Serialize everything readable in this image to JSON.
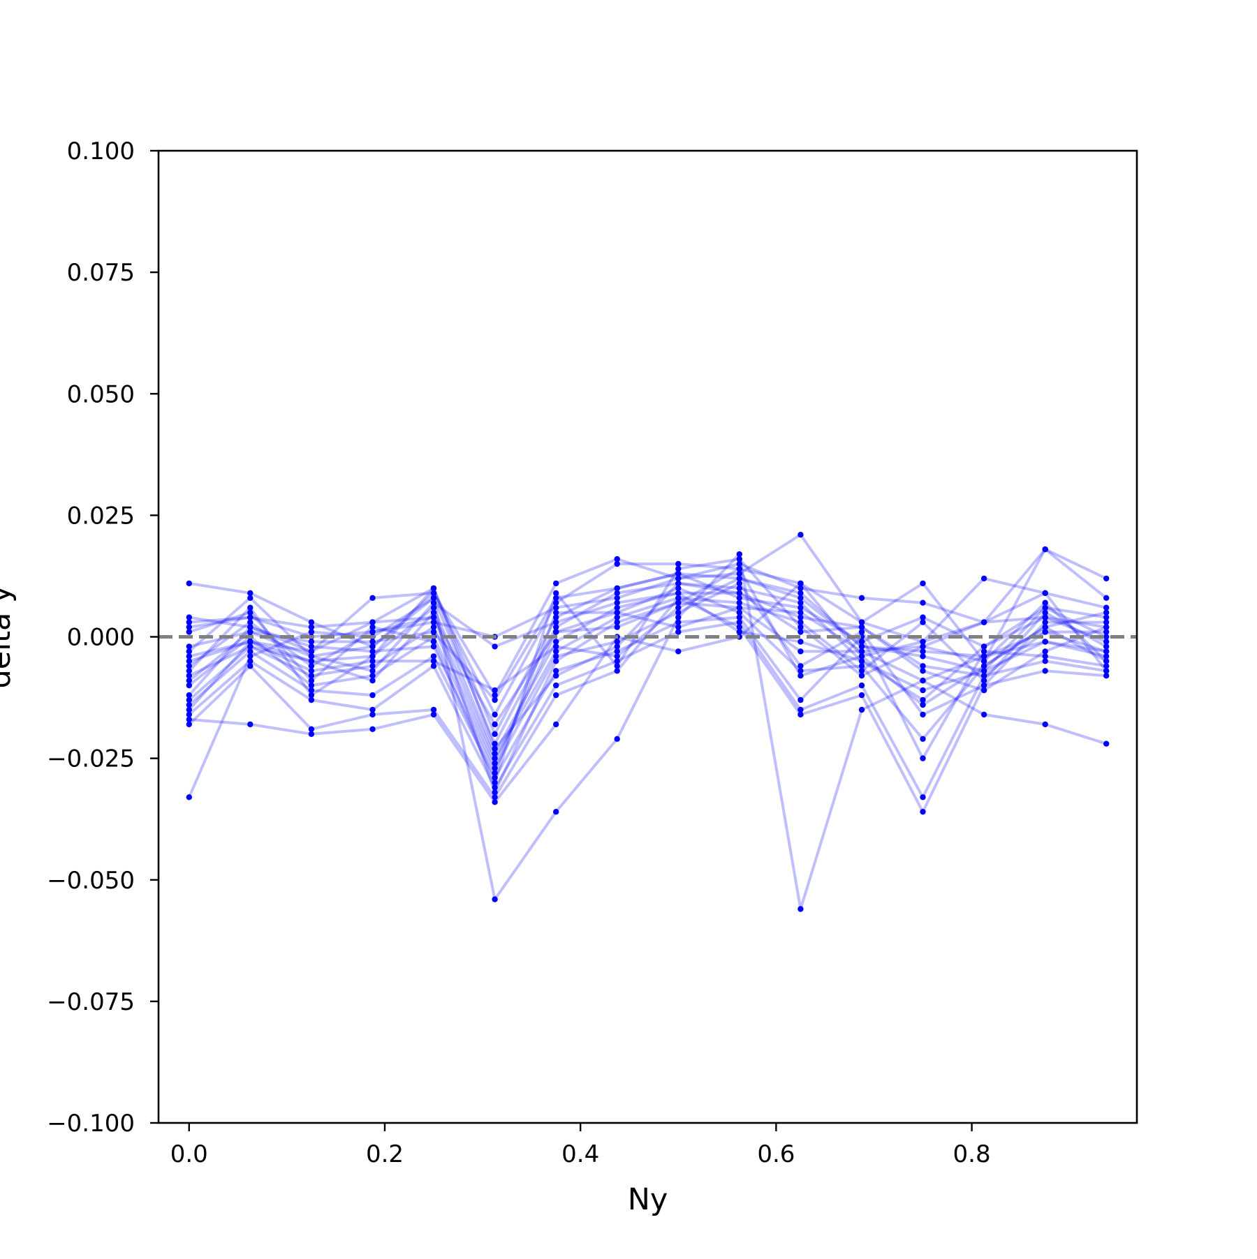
{
  "chart_data": {
    "type": "line",
    "title": "",
    "xlabel": "Ny",
    "ylabel": "delta y",
    "xlim": [
      -0.03125,
      0.96875
    ],
    "ylim": [
      -0.1,
      0.1
    ],
    "xticks": [
      "0.0",
      "0.2",
      "0.4",
      "0.6",
      "0.8"
    ],
    "xtick_values": [
      0.0,
      0.2,
      0.4,
      0.6,
      0.8
    ],
    "yticks": [
      "0.100",
      "0.075",
      "0.050",
      "0.025",
      "0.000",
      "−0.025",
      "−0.050",
      "−0.075",
      "−0.100"
    ],
    "ytick_values": [
      0.1,
      0.075,
      0.05,
      0.025,
      0.0,
      -0.025,
      -0.05,
      -0.075,
      -0.1
    ],
    "grid": false,
    "legend": "none",
    "reference_line": {
      "y": 0.0,
      "style": "dashed",
      "color": "#808080"
    },
    "series_color": "#0000ff",
    "series_opacity": 0.25,
    "x": [
      0.0,
      0.0625,
      0.125,
      0.1875,
      0.25,
      0.3125,
      0.375,
      0.4375,
      0.5,
      0.5625,
      0.625,
      0.6875,
      0.75,
      0.8125,
      0.875,
      0.9375
    ],
    "series": [
      {
        "values": [
          0.011,
          0.009,
          0.003,
          -0.002,
          0.009,
          -0.012,
          0.011,
          0.016,
          0.012,
          0.013,
          0.021,
          0.003,
          0.011,
          -0.005,
          0.018,
          0.012
        ]
      },
      {
        "values": [
          0.004,
          0.002,
          -0.003,
          0.008,
          0.009,
          -0.016,
          0.007,
          0.015,
          0.015,
          0.014,
          0.011,
          -0.004,
          -0.001,
          0.003,
          0.009,
          0.006
        ]
      },
      {
        "values": [
          0.003,
          0.004,
          0.002,
          0.003,
          0.01,
          -0.02,
          0.004,
          0.01,
          0.013,
          0.012,
          0.009,
          -0.002,
          -0.004,
          -0.007,
          0.006,
          0.004
        ]
      },
      {
        "values": [
          -0.002,
          0.001,
          -0.004,
          -0.002,
          0.008,
          -0.022,
          0.002,
          0.009,
          0.011,
          0.01,
          0.007,
          -0.005,
          -0.013,
          -0.002,
          0.004,
          0.002
        ]
      },
      {
        "values": [
          -0.004,
          -0.001,
          -0.005,
          -0.004,
          0.006,
          -0.024,
          -0.001,
          0.006,
          0.009,
          0.009,
          0.004,
          0.002,
          -0.006,
          -0.008,
          0.001,
          0.001
        ]
      },
      {
        "values": [
          -0.006,
          0.003,
          -0.006,
          0.001,
          0.004,
          -0.025,
          -0.003,
          0.004,
          0.008,
          0.007,
          0.003,
          -0.007,
          0.003,
          -0.009,
          0.005,
          -0.002
        ]
      },
      {
        "values": [
          -0.008,
          -0.002,
          -0.008,
          -0.006,
          0.002,
          -0.026,
          0.001,
          0.002,
          0.007,
          0.006,
          0.005,
          -0.003,
          -0.009,
          -0.004,
          -0.001,
          -0.004
        ]
      },
      {
        "values": [
          -0.01,
          0.0,
          -0.01,
          -0.008,
          0.0,
          -0.027,
          -0.004,
          -0.001,
          0.005,
          0.011,
          -0.006,
          0.001,
          -0.016,
          -0.01,
          0.003,
          0.003
        ]
      },
      {
        "values": [
          -0.012,
          0.002,
          -0.002,
          -0.003,
          -0.002,
          -0.028,
          0.005,
          0.005,
          0.01,
          0.005,
          -0.007,
          -0.006,
          -0.021,
          -0.006,
          0.002,
          -0.005
        ]
      },
      {
        "values": [
          -0.014,
          -0.003,
          -0.011,
          -0.012,
          -0.004,
          -0.029,
          -0.007,
          -0.003,
          0.003,
          0.004,
          -0.013,
          0.0,
          -0.025,
          -0.003,
          -0.004,
          -0.006
        ]
      },
      {
        "values": [
          -0.016,
          -0.005,
          -0.013,
          -0.015,
          -0.006,
          -0.031,
          -0.01,
          -0.005,
          0.001,
          0.003,
          -0.015,
          -0.01,
          -0.033,
          -0.008,
          -0.005,
          -0.007
        ]
      },
      {
        "values": [
          -0.018,
          -0.006,
          -0.019,
          -0.016,
          -0.015,
          -0.033,
          -0.012,
          -0.007,
          0.008,
          0.002,
          -0.016,
          -0.012,
          -0.036,
          -0.01,
          -0.007,
          -0.008
        ]
      },
      {
        "values": [
          -0.017,
          -0.018,
          -0.02,
          -0.019,
          -0.016,
          -0.034,
          -0.018,
          0.0,
          -0.003,
          0.0,
          0.011,
          0.003,
          -0.001,
          0.012,
          0.009,
          -0.007
        ]
      },
      {
        "values": [
          0.002,
          0.004,
          0.0,
          0.001,
          0.003,
          0.0,
          0.006,
          0.008,
          0.012,
          0.015,
          0.01,
          0.008,
          0.007,
          0.003,
          0.018,
          0.008
        ]
      },
      {
        "values": [
          -0.033,
          -0.004,
          0.001,
          0.0,
          0.008,
          -0.054,
          -0.036,
          -0.021,
          0.004,
          0.017,
          -0.056,
          -0.015,
          -0.009,
          -0.016,
          -0.018,
          -0.022
        ]
      },
      {
        "values": [
          -0.005,
          -0.001,
          -0.007,
          -0.005,
          -0.005,
          -0.011,
          -0.002,
          -0.004,
          0.006,
          0.012,
          0.008,
          -0.002,
          -0.003,
          -0.004,
          0.001,
          -0.003
        ]
      },
      {
        "values": [
          -0.009,
          0.001,
          -0.001,
          -0.001,
          0.001,
          -0.013,
          0.008,
          0.01,
          0.013,
          0.008,
          0.006,
          -0.001,
          0.004,
          -0.002,
          0.006,
          0.0
        ]
      },
      {
        "values": [
          -0.003,
          0.008,
          -0.004,
          -0.007,
          0.007,
          -0.002,
          0.003,
          0.007,
          0.009,
          0.001,
          -0.001,
          -0.005,
          -0.011,
          -0.007,
          -0.001,
          -0.003
        ]
      },
      {
        "values": [
          0.001,
          0.005,
          -0.009,
          0.002,
          -0.001,
          -0.03,
          0.009,
          -0.006,
          0.014,
          0.016,
          0.002,
          -0.008,
          -0.002,
          0.003,
          0.004,
          -0.001
        ]
      },
      {
        "values": [
          -0.013,
          -0.002,
          -0.005,
          -0.009,
          0.005,
          -0.032,
          -0.005,
          0.003,
          0.007,
          0.014,
          -0.008,
          -0.004,
          -0.014,
          -0.006,
          0.002,
          0.005
        ]
      },
      {
        "values": [
          -0.007,
          0.006,
          -0.012,
          -0.004,
          0.01,
          -0.023,
          -0.008,
          -0.002,
          0.011,
          0.009,
          0.001,
          0.002,
          -0.007,
          -0.011,
          -0.003,
          0.002
        ]
      },
      {
        "values": [
          -0.015,
          -0.001,
          -0.003,
          0.003,
          0.004,
          -0.018,
          0.001,
          0.005,
          0.002,
          0.006,
          -0.003,
          -0.003,
          -0.002,
          -0.005,
          0.007,
          -0.005
        ]
      }
    ]
  }
}
